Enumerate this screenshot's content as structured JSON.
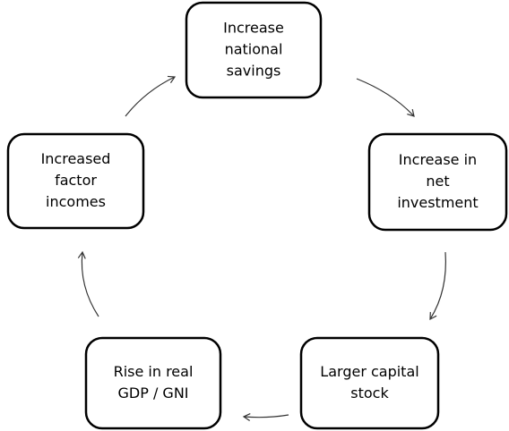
{
  "nodes": [
    {
      "lines": [
        "Increase",
        "national",
        "savings"
      ]
    },
    {
      "lines": [
        "Increase in",
        "net",
        "investment"
      ]
    },
    {
      "lines": [
        "Larger capital",
        "stock"
      ]
    },
    {
      "lines": [
        "Rise in real",
        "GDP / GNI"
      ]
    },
    {
      "lines": [
        "Increased",
        "factor",
        "incomes"
      ]
    }
  ]
}
